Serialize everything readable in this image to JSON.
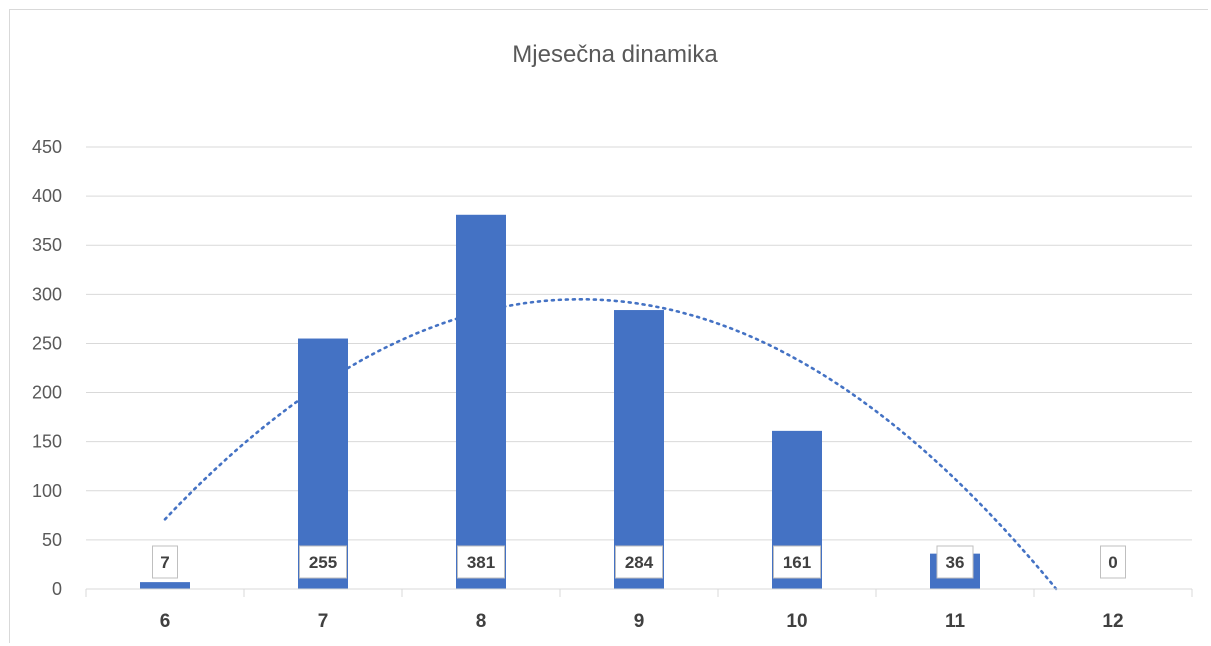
{
  "chart_data": {
    "type": "bar",
    "title": "Mjesečna dinamika",
    "categories": [
      "6",
      "7",
      "8",
      "9",
      "10",
      "11",
      "12"
    ],
    "series": [
      {
        "values": [
          7,
          255,
          381,
          284,
          161,
          36,
          0
        ]
      }
    ],
    "data_labels": [
      "7",
      "255",
      "381",
      "284",
      "161",
      "36",
      "0"
    ],
    "trendline": {
      "type": "polynomial",
      "degree": 2,
      "style": "dotted"
    },
    "xlabel": "",
    "ylabel": "",
    "ylim": [
      0,
      450
    ],
    "yticks": [
      0,
      50,
      100,
      150,
      200,
      250,
      300,
      350,
      400,
      450
    ],
    "grid": true,
    "legend": "none",
    "colors": {
      "bar": "#4472C4",
      "trend": "#4472C4",
      "grid": "#d9d9d9",
      "text": "#595959"
    }
  }
}
